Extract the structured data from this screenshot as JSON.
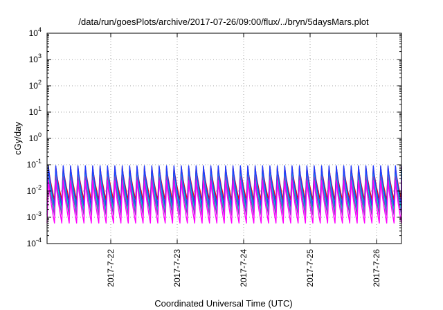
{
  "chart_data": {
    "type": "line",
    "title": "/data/run/goesPlots/archive/2017-07-26/09:00/flux/../bryn/5daysMars.plot",
    "xlabel": "Coordinated Universal Time (UTC)",
    "ylabel": "cGy/day",
    "yscale": "log",
    "ylim": [
      0.0001,
      10000
    ],
    "xlim": [
      "2017-07-21T01:00",
      "2017-07-26T09:00"
    ],
    "grid": true,
    "legend": "none",
    "y_ticks": [
      {
        "base": "10",
        "exp": "-4",
        "value": 0.0001
      },
      {
        "base": "10",
        "exp": "-3",
        "value": 0.001
      },
      {
        "base": "10",
        "exp": "-2",
        "value": 0.01
      },
      {
        "base": "10",
        "exp": "-1",
        "value": 0.1
      },
      {
        "base": "10",
        "exp": "0",
        "value": 1
      },
      {
        "base": "10",
        "exp": "1",
        "value": 10
      },
      {
        "base": "10",
        "exp": "2",
        "value": 100
      },
      {
        "base": "10",
        "exp": "3",
        "value": 1000
      },
      {
        "base": "10",
        "exp": "4",
        "value": 10000
      }
    ],
    "x_ticks": [
      {
        "label": "2017-7-22",
        "value": "2017-07-22T00:00"
      },
      {
        "label": "2017-7-23",
        "value": "2017-07-23T00:00"
      },
      {
        "label": "2017-7-24",
        "value": "2017-07-24T00:00"
      },
      {
        "label": "2017-7-25",
        "value": "2017-07-25T00:00"
      },
      {
        "label": "2017-7-26",
        "value": "2017-07-26T00:00"
      }
    ],
    "sawtooth": {
      "cycles_per_day": 9,
      "phase_start": "2017-07-21T01:00",
      "peak_fraction_of_cycle": 0.18
    },
    "series": [
      {
        "color": "#ff0000",
        "peak": 0.085,
        "trough": 0.0045
      },
      {
        "color": "#1a9a1a",
        "peak": 0.07,
        "trough": 0.0022
      },
      {
        "color": "#00d8d8",
        "peak": 0.058,
        "trough": 0.0016
      },
      {
        "color": "#1e3cff",
        "peak": 0.09,
        "trough": 0.0028
      },
      {
        "color": "#8040c0",
        "peak": 0.035,
        "trough": 0.0012
      },
      {
        "color": "#ff00ff",
        "peak": 0.025,
        "trough": 0.0006
      }
    ]
  }
}
